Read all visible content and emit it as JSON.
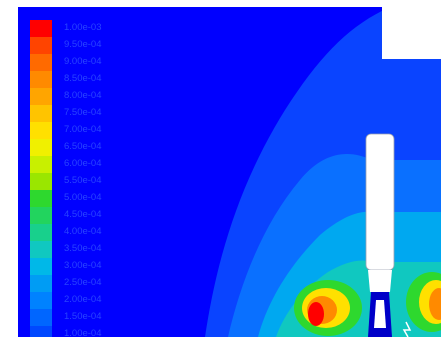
{
  "legend": {
    "labels": [
      "1.00e-03",
      "9.50e-04",
      "9.00e-04",
      "8.50e-04",
      "8.00e-04",
      "7.50e-04",
      "7.00e-04",
      "6.50e-04",
      "6.00e-04",
      "5.50e-04",
      "5.00e-04",
      "4.50e-04",
      "4.00e-04",
      "3.50e-04",
      "3.00e-04",
      "2.50e-04",
      "2.00e-04",
      "1.50e-04",
      "1.00e-04"
    ],
    "colors": [
      "#ff0000",
      "#ff4400",
      "#ff6a00",
      "#ff8a00",
      "#ffa500",
      "#ffc400",
      "#ffe000",
      "#f0f000",
      "#c8f000",
      "#9ae600",
      "#2ed82e",
      "#22d45e",
      "#18d08c",
      "#10c8c0",
      "#00b8e8",
      "#009cf4",
      "#0082ff",
      "#0066ff",
      "#0048ff"
    ]
  },
  "field_colors": {
    "background": "#0000ff",
    "outer_plume": "#0a44ff",
    "mid_plume": "#0a70ff",
    "inner_plume": "#00a8f0",
    "core_plume": "#10c8c0",
    "hot_green": "#2ed82e",
    "hot_yellow": "#ffe000",
    "hot_orange": "#ff8a00",
    "hot_red": "#ff0000",
    "probe_body": "#ffffff",
    "probe_tip": "#0000c8"
  }
}
